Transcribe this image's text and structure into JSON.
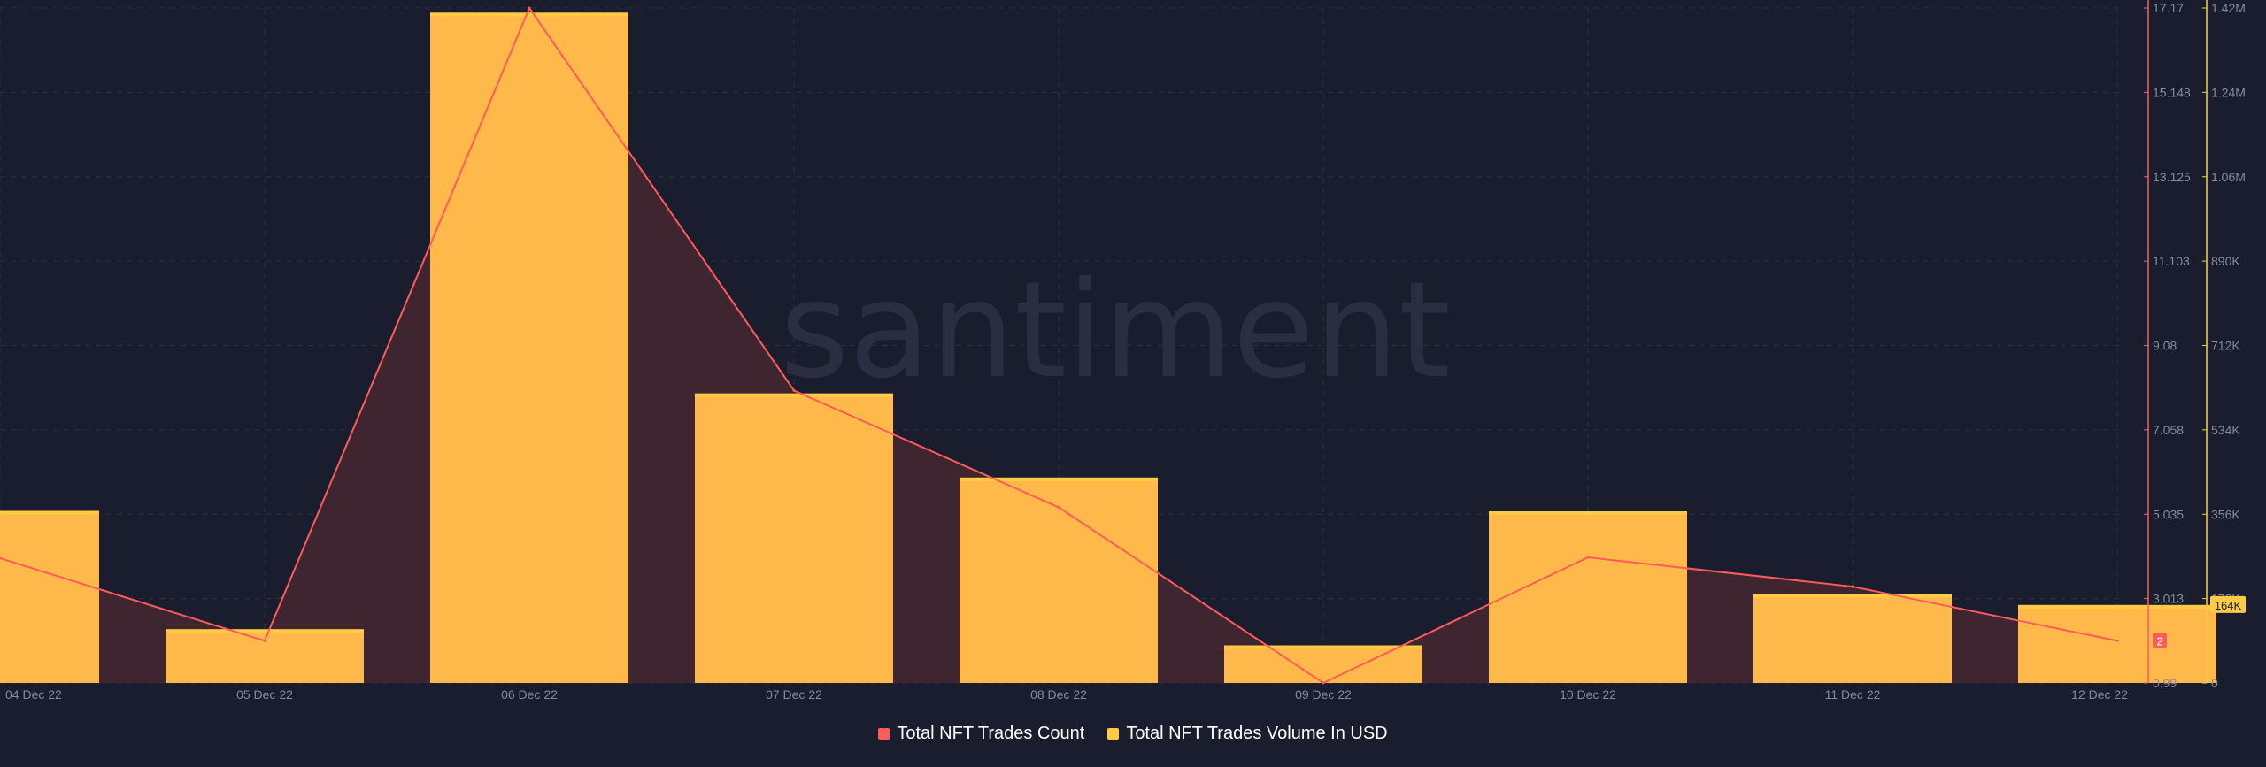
{
  "watermark": "santiment",
  "chart_data": {
    "type": "bar",
    "categories": [
      "04 Dec 22",
      "05 Dec 22",
      "06 Dec 22",
      "07 Dec 22",
      "08 Dec 22",
      "09 Dec 22",
      "10 Dec 22",
      "11 Dec 22",
      "12 Dec 22"
    ],
    "x_tick_labels": [
      "04 Dec 22",
      "05 Dec 22",
      "06 Dec 22",
      "07 Dec 22",
      "08 Dec 22",
      "09 Dec 22",
      "10 Dec 22",
      "11 Dec 22",
      "12 Dec 22"
    ],
    "series": [
      {
        "name": "Total NFT Trades Count",
        "kind": "line-area",
        "axis": "left",
        "color": "#ff5b5b",
        "values": [
          3.98,
          2.0,
          17.17,
          8.0,
          5.2,
          0.99,
          4.0,
          3.3,
          2.0
        ]
      },
      {
        "name": "Total NFT Trades Volume In USD",
        "kind": "bar",
        "axis": "right",
        "color": "#ffcb47",
        "values": [
          362000,
          113000,
          1410000,
          609000,
          432000,
          79000,
          361000,
          187000,
          164000
        ]
      }
    ],
    "left_axis": {
      "ticks": [
        "17.17",
        "15.148",
        "13.125",
        "11.103",
        "9.08",
        "7.058",
        "5.035",
        "3.013",
        "0.99"
      ],
      "range": [
        0.99,
        17.17
      ],
      "color": "#ff5b5b",
      "last_value_badge": "2"
    },
    "right_axis": {
      "ticks": [
        "1.42M",
        "1.24M",
        "1.06M",
        "890K",
        "712K",
        "534K",
        "356K",
        "178K",
        "0"
      ],
      "range": [
        0,
        1420000
      ],
      "color": "#ffcb47",
      "last_value_badge": "164K"
    },
    "grid": true,
    "legend_position": "bottom-center"
  }
}
